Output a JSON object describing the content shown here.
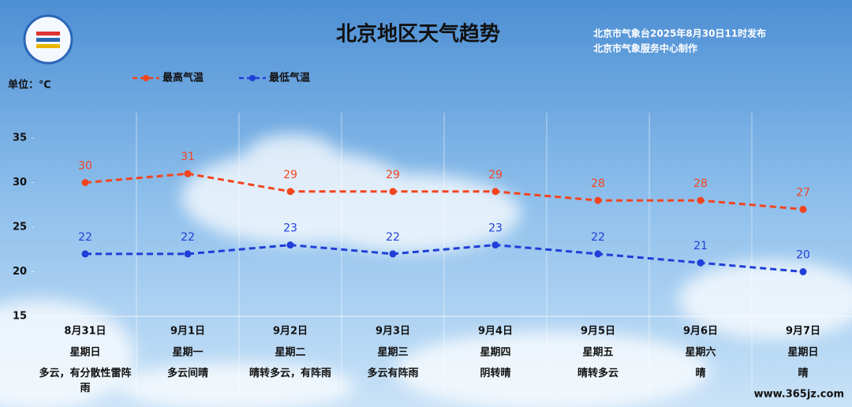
{
  "chart_data": {
    "type": "line",
    "title": "北京地区天气趋势",
    "subtitle": [
      "北京市气象台2025年8月30日11时发布",
      "北京市气象服务中心制作"
    ],
    "y_label": "单位：℃",
    "watermark": "www.365jz.com",
    "categories": [
      "8月31日",
      "9月1日",
      "9月2日",
      "9月3日",
      "9月4日",
      "9月5日",
      "9月6日",
      "9月7日"
    ],
    "weekdays": [
      "星期日",
      "星期一",
      "星期二",
      "星期三",
      "星期四",
      "星期五",
      "星期六",
      "星期日"
    ],
    "weather": [
      "多云，有分散性雷阵雨",
      "多云间晴",
      "晴转多云，有阵雨",
      "多云有阵雨",
      "阴转晴",
      "晴转多云",
      "晴",
      "晴"
    ],
    "series": [
      {
        "name": "最高气温",
        "color": "#f2451f",
        "values": [
          30,
          31,
          29,
          29,
          29,
          28,
          28,
          27
        ]
      },
      {
        "name": "最低气温",
        "color": "#1f3fd8",
        "values": [
          22,
          22,
          23,
          22,
          23,
          22,
          21,
          20
        ]
      }
    ],
    "ylim": [
      15,
      35
    ],
    "yticks": [
      15,
      20,
      25,
      30,
      35
    ],
    "grid": false,
    "legend": "top"
  }
}
